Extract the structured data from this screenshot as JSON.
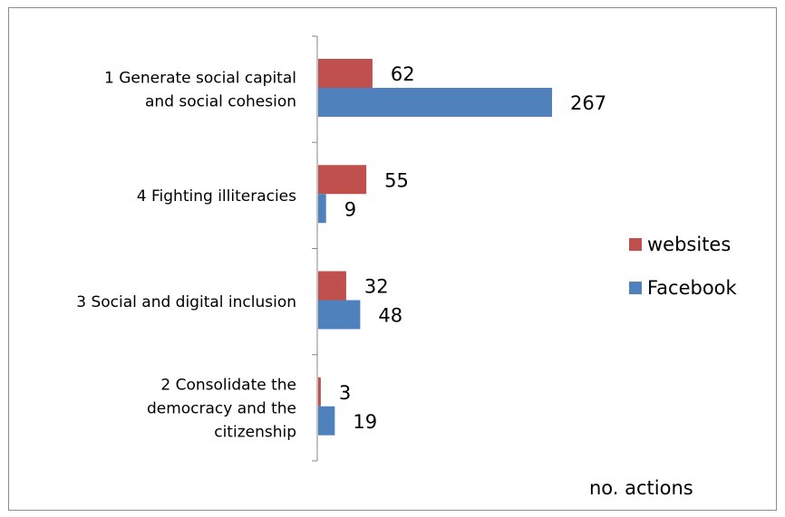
{
  "chart_data": {
    "type": "bar",
    "orientation": "horizontal",
    "categories": [
      [
        "1 Generate social capital",
        "and social cohesion"
      ],
      [
        "4 Fighting illiteracies"
      ],
      [
        "3 Social and digital inclusion"
      ],
      [
        "2 Consolidate the",
        "democracy and the",
        "citizenship"
      ]
    ],
    "series": [
      {
        "name": "websites",
        "color": "#c0504d",
        "values": [
          62,
          55,
          32,
          3
        ]
      },
      {
        "name": "Facebook",
        "color": "#4f81bd",
        "values": [
          267,
          9,
          48,
          19
        ]
      }
    ],
    "unit_label": "no. actions",
    "xlim": [
      0,
      300
    ],
    "legend_position": "right",
    "grid": false,
    "data_labels": true
  }
}
